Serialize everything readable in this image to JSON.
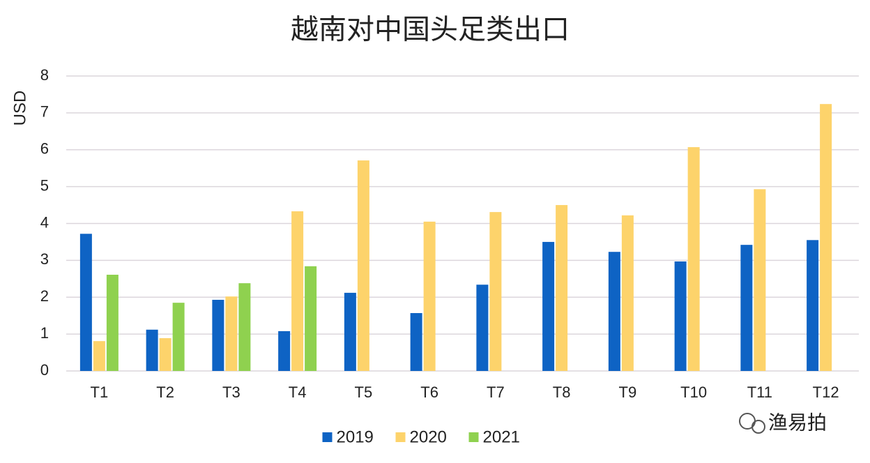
{
  "chart_data": {
    "type": "bar",
    "title": "越南对中国头足类出口",
    "y_label": "USD",
    "categories": [
      "T1",
      "T2",
      "T3",
      "T4",
      "T5",
      "T6",
      "T7",
      "T8",
      "T9",
      "T10",
      "T11",
      "T12"
    ],
    "series": [
      {
        "name": "2019",
        "color": "#0e63c4",
        "values": [
          3.72,
          1.12,
          1.93,
          1.08,
          2.12,
          1.57,
          2.34,
          3.5,
          3.23,
          2.97,
          3.42,
          3.55
        ]
      },
      {
        "name": "2020",
        "color": "#fdd36b",
        "values": [
          0.81,
          0.89,
          2.02,
          4.33,
          5.71,
          4.05,
          4.31,
          4.5,
          4.22,
          6.07,
          4.93,
          7.24
        ]
      },
      {
        "name": "2021",
        "color": "#8fd14f",
        "values": [
          2.61,
          1.85,
          2.38,
          2.84,
          null,
          null,
          null,
          null,
          null,
          null,
          null,
          null
        ]
      }
    ],
    "ylim": [
      0,
      8
    ],
    "yticks": [
      0,
      1,
      2,
      3,
      4,
      5,
      6,
      7,
      8
    ],
    "grid": true,
    "legend": "bottom"
  },
  "watermark": "渔易拍"
}
